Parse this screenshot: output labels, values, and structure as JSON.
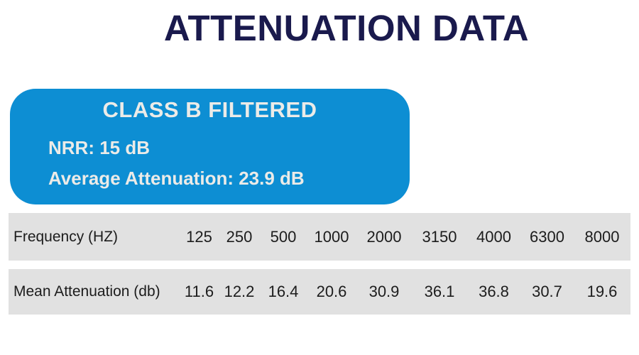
{
  "page": {
    "title": "ATTENUATION DATA"
  },
  "card": {
    "heading": "CLASS B FILTERED",
    "nrr": "NRR: 15 dB",
    "average": "Average Attenuation: 23.9 dB"
  },
  "table": {
    "rows": [
      {
        "label": "Frequency (HZ)",
        "values": [
          "125",
          "250",
          "500",
          "1000",
          "2000",
          "3150",
          "4000",
          "6300",
          "8000"
        ]
      },
      {
        "label": "Mean Attenuation (db)",
        "values": [
          "11.6",
          "12.2",
          "16.4",
          "20.6",
          "30.9",
          "36.1",
          "36.8",
          "30.7",
          "19.6"
        ]
      }
    ]
  },
  "colors": {
    "title_navy": "#1a1a4d",
    "card_blue": "#0d8ed3",
    "card_text": "#ebebe8",
    "row_gray": "#e1e1e1",
    "row_text": "#1c1c1c"
  },
  "chart_data": {
    "type": "table",
    "title": "ATTENUATION DATA",
    "subtitle": "CLASS B FILTERED",
    "nrr_db": 15,
    "average_attenuation_db": 23.9,
    "categories": [
      125,
      250,
      500,
      1000,
      2000,
      3150,
      4000,
      6300,
      8000
    ],
    "xlabel": "Frequency (HZ)",
    "series": [
      {
        "name": "Mean Attenuation (db)",
        "values": [
          11.6,
          12.2,
          16.4,
          20.6,
          30.9,
          36.1,
          36.8,
          30.7,
          19.6
        ]
      }
    ]
  }
}
